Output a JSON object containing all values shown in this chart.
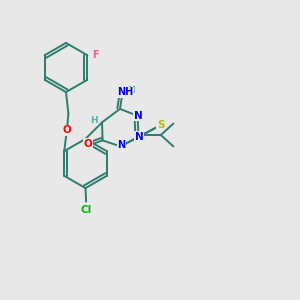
{
  "background_color": "#e8e8e8",
  "bond_color": "#2d7d6e",
  "atom_colors": {
    "F": "#e060a0",
    "O": "#ff0000",
    "N": "#0000ee",
    "S": "#bbbb00",
    "Cl": "#00bb00",
    "C": "#2d7d6e",
    "H": "#5aadad"
  },
  "lw": 1.4
}
